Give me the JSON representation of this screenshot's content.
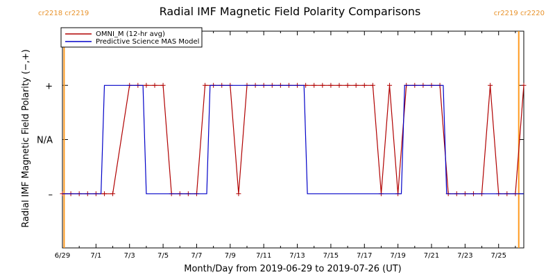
{
  "chart_data": {
    "type": "line",
    "title": "Radial IMF Magnetic Field Polarity Comparisons",
    "xlabel": "Month/Day from 2019-06-29 to 2019-07-26 (UT)",
    "ylabel": "Radial IMF Magnetic Field Polarity (−,+)",
    "x_tick_labels": [
      "6/29",
      "7/1",
      "7/3",
      "7/5",
      "7/7",
      "7/9",
      "7/11",
      "7/13",
      "7/15",
      "7/17",
      "7/19",
      "7/21",
      "7/23",
      "7/25"
    ],
    "x_tick_days": [
      0,
      2,
      4,
      6,
      8,
      10,
      12,
      14,
      16,
      18,
      20,
      22,
      24,
      26
    ],
    "xlim_days": [
      0,
      27.5
    ],
    "y_levels": [
      {
        "label": "+",
        "value": 1
      },
      {
        "label": "N/A",
        "value": 0
      },
      {
        "label": "–",
        "value": -1
      }
    ],
    "ylim": [
      -2,
      2
    ],
    "legend": {
      "position": "top-left"
    },
    "carrington_markers": [
      {
        "label": "cr2218 cr2219",
        "day": 0.1,
        "side": "left"
      },
      {
        "label": "cr2219 cr2220",
        "day": 27.2,
        "side": "right"
      }
    ],
    "series": [
      {
        "name": "OMNI_M (12-hr avg)",
        "color": "#b00000",
        "markers": true,
        "points": [
          [
            0,
            -1
          ],
          [
            0.5,
            -1
          ],
          [
            1,
            -1
          ],
          [
            1.5,
            -1
          ],
          [
            2,
            -1
          ],
          [
            2.5,
            -1
          ],
          [
            3,
            -1
          ],
          [
            4,
            1
          ],
          [
            4.5,
            1
          ],
          [
            5,
            1
          ],
          [
            5.5,
            1
          ],
          [
            6,
            1
          ],
          [
            6.5,
            -1
          ],
          [
            7,
            -1
          ],
          [
            7.5,
            -1
          ],
          [
            8,
            -1
          ],
          [
            8.5,
            1
          ],
          [
            9,
            1
          ],
          [
            9.5,
            1
          ],
          [
            10,
            1
          ],
          [
            10.5,
            -1
          ],
          [
            11,
            1
          ],
          [
            11.5,
            1
          ],
          [
            12,
            1
          ],
          [
            12.5,
            1
          ],
          [
            13,
            1
          ],
          [
            13.5,
            1
          ],
          [
            14,
            1
          ],
          [
            14.5,
            1
          ],
          [
            15,
            1
          ],
          [
            15.5,
            1
          ],
          [
            16,
            1
          ],
          [
            16.5,
            1
          ],
          [
            17,
            1
          ],
          [
            17.5,
            1
          ],
          [
            18,
            1
          ],
          [
            18.5,
            1
          ],
          [
            19,
            -1
          ],
          [
            19.5,
            1
          ],
          [
            20,
            -1
          ],
          [
            20.5,
            1
          ],
          [
            21,
            1
          ],
          [
            21.5,
            1
          ],
          [
            22,
            1
          ],
          [
            22.5,
            1
          ],
          [
            23,
            -1
          ],
          [
            23.5,
            -1
          ],
          [
            24,
            -1
          ],
          [
            24.5,
            -1
          ],
          [
            25,
            -1
          ],
          [
            25.5,
            1
          ],
          [
            26,
            -1
          ],
          [
            26.5,
            -1
          ],
          [
            27,
            -1
          ],
          [
            27.5,
            1
          ]
        ]
      },
      {
        "name": "Predictive Science MAS Model",
        "color": "#0000c8",
        "markers": false,
        "points": [
          [
            0,
            -1
          ],
          [
            2.3,
            -1
          ],
          [
            2.5,
            1
          ],
          [
            4.8,
            1
          ],
          [
            5,
            -1
          ],
          [
            8.6,
            -1
          ],
          [
            8.8,
            1
          ],
          [
            14.4,
            1
          ],
          [
            14.6,
            -1
          ],
          [
            20.2,
            -1
          ],
          [
            20.4,
            1
          ],
          [
            22.7,
            1
          ],
          [
            22.9,
            -1
          ],
          [
            27.5,
            -1
          ]
        ]
      }
    ]
  }
}
